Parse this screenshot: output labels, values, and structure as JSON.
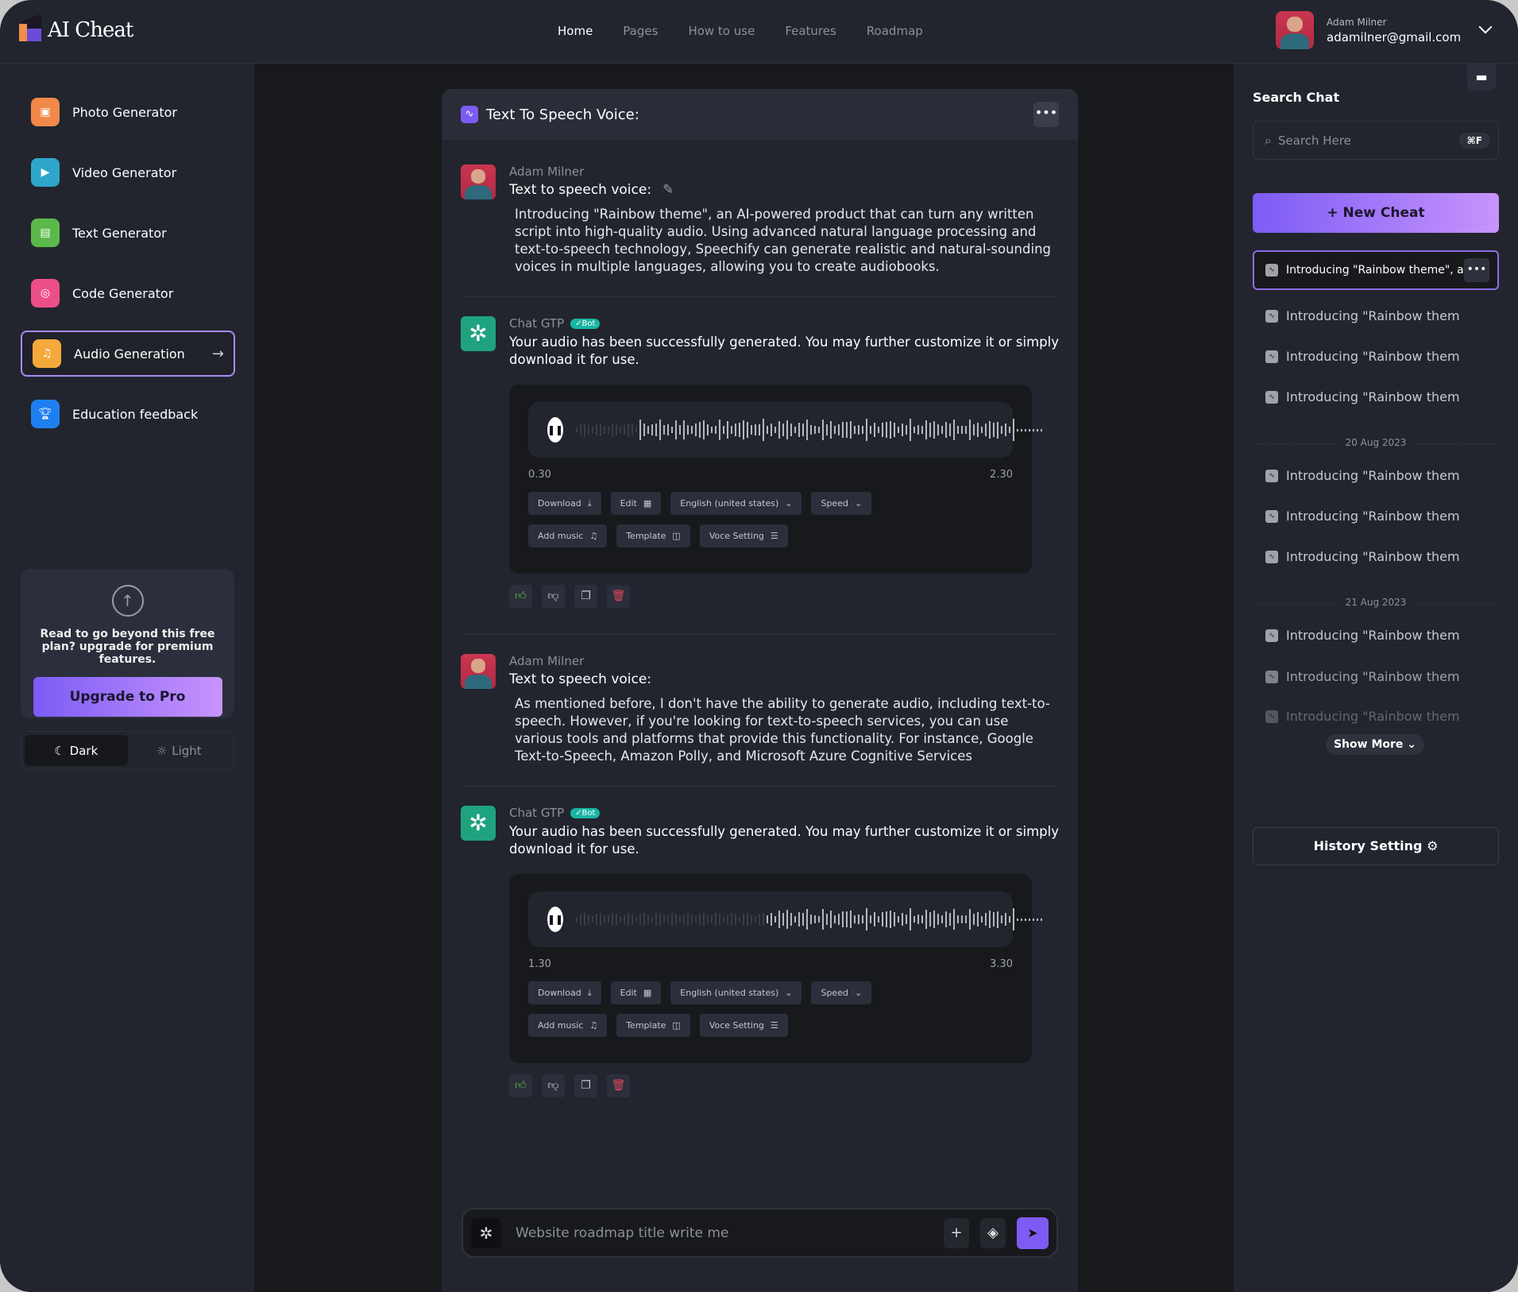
{
  "app": {
    "logo_text": "AI Cheat",
    "accent": "#7d5cf3"
  },
  "nav": {
    "items": [
      "Home",
      "Pages",
      "How to use",
      "Features",
      "Roadmap"
    ],
    "active": "Home"
  },
  "user": {
    "name": "Adam Milner",
    "email": "adamilner@gmail.com"
  },
  "sidebar": {
    "items": [
      {
        "label": "Photo Generator",
        "icon": "photo-icon",
        "color": "#f0894a"
      },
      {
        "label": "Video Generator",
        "icon": "video-icon",
        "color": "#2ea6c9"
      },
      {
        "label": "Text Generator",
        "icon": "text-icon",
        "color": "#5bb84a"
      },
      {
        "label": "Code Generator",
        "icon": "code-icon",
        "color": "#ec4f87"
      },
      {
        "label": "Audio Generation",
        "icon": "music-icon",
        "color": "#f6a93b",
        "active": true
      },
      {
        "label": "Education feedback",
        "icon": "trophy-icon",
        "color": "#1f7ff0"
      }
    ],
    "upgrade": {
      "text": "Read to go beyond this free plan? upgrade for premium features.",
      "button": "Upgrade to Pro"
    },
    "theme": {
      "dark": "Dark",
      "light": "Light",
      "selected": "Dark"
    }
  },
  "chat": {
    "title": "Text To Speech Voice:",
    "messages": [
      {
        "sender": "Adam Milner",
        "title": "Text to speech voice:",
        "text": "Introducing \"Rainbow theme\", an AI-powered product that can turn any written script into high-quality audio. Using advanced natural language processing and text-to-speech technology, Speechify can generate realistic and natural-sounding voices in multiple languages, allowing you to create audiobooks."
      },
      {
        "sender": "Chat GTP",
        "badge": "✓Bot",
        "text": "Your audio has been successfully generated. You may further customize it or simply download it for use.",
        "audio": {
          "current": "0.30",
          "total": "2.30",
          "progress": 0.13
        }
      },
      {
        "sender": "Adam Milner",
        "title": "Text to speech voice:",
        "text": "As mentioned before, I don't have the ability to generate audio, including text-to-speech. However, if you're looking for text-to-speech services, you can use various tools and platforms that provide this functionality. For instance, Google Text-to-Speech, Amazon Polly, and Microsoft Azure Cognitive Services"
      },
      {
        "sender": "Chat GTP",
        "badge": "✓Bot",
        "text": "Your audio has been successfully generated. You may further customize it or simply download it for use.",
        "audio": {
          "current": "1.30",
          "total": "3.30",
          "progress": 0.4
        }
      }
    ],
    "audio_buttons": {
      "download": "Download",
      "edit": "Edit",
      "language": "English (united states)",
      "speed": "Speed",
      "add_music": "Add music",
      "template": "Template",
      "voice_setting": "Voce Setting"
    },
    "input_placeholder": "Website roadmap title write me"
  },
  "right": {
    "title": "Search Chat",
    "search_placeholder": "Search Here",
    "shortcut": "⌘F",
    "new_button": "New Cheat",
    "active_item": "Introducing \"Rainbow theme\", a",
    "groups": [
      {
        "date": "",
        "items": [
          "Introducing \"Rainbow them",
          "Introducing \"Rainbow them",
          "Introducing \"Rainbow them"
        ]
      },
      {
        "date": "20 Aug 2023",
        "items": [
          "Introducing \"Rainbow them",
          "Introducing \"Rainbow them",
          "Introducing \"Rainbow them"
        ]
      },
      {
        "date": "21 Aug 2023",
        "items": [
          "Introducing \"Rainbow them",
          "Introducing \"Rainbow them",
          "Introducing \"Rainbow them"
        ]
      }
    ],
    "show_more": "Show More",
    "history_setting": "History Setting"
  }
}
